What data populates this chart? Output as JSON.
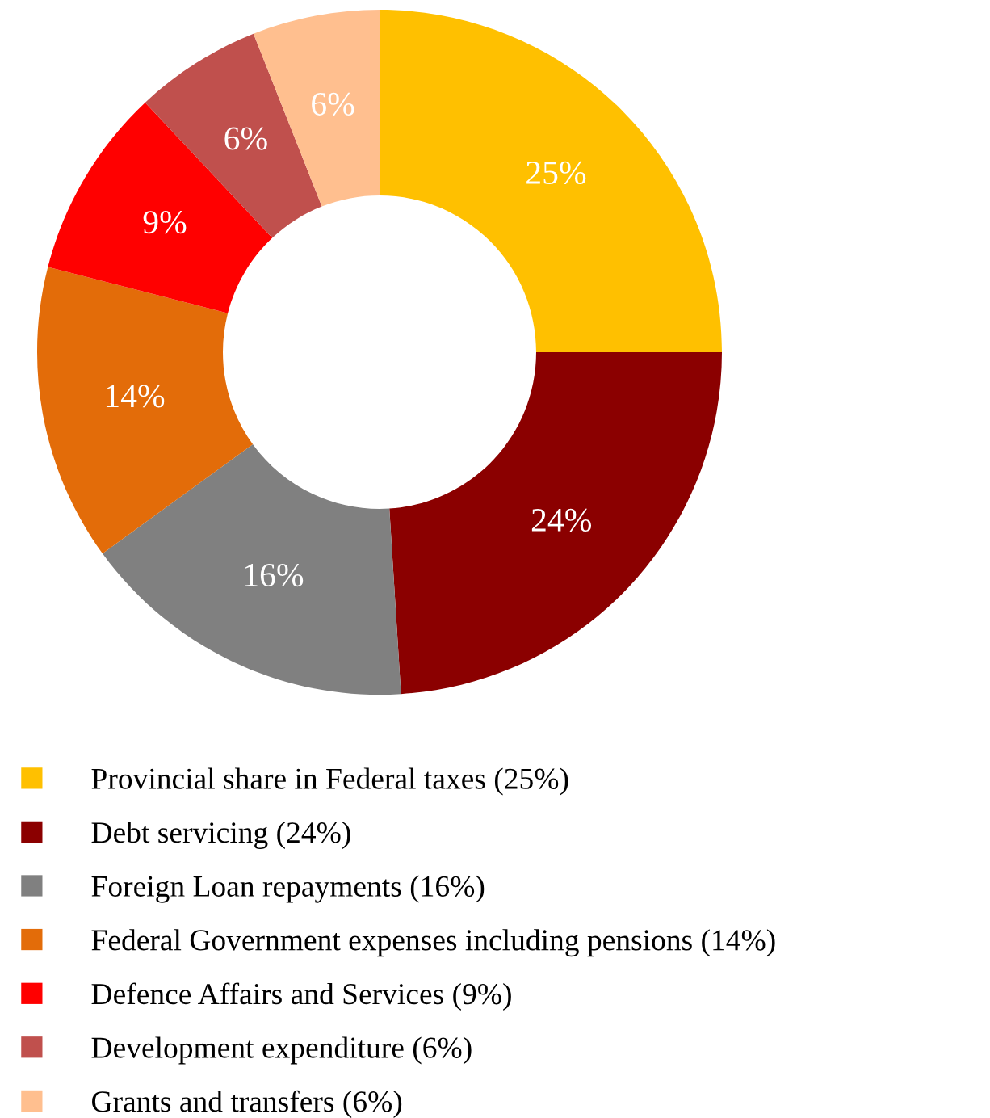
{
  "chart_data": {
    "type": "donut",
    "categories": [
      "Provincial share in Federal taxes (25%)",
      "Debt servicing (24%)",
      "Foreign Loan repayments (16%)",
      "Federal Government expenses including pensions (14%)",
      "Defence Affairs and Services (9%)",
      "Development expenditure (6%)",
      "Grants and transfers (6%)"
    ],
    "values": [
      25,
      24,
      16,
      14,
      9,
      6,
      6
    ],
    "colors": [
      "#ffc000",
      "#8b0000",
      "#808080",
      "#e36c09",
      "#ff0000",
      "#c0504d",
      "#ffbf8f"
    ],
    "value_labels": [
      "25%",
      "24%",
      "16%",
      "14%",
      "9%",
      "6%",
      "6%"
    ],
    "legend": "bottom"
  }
}
